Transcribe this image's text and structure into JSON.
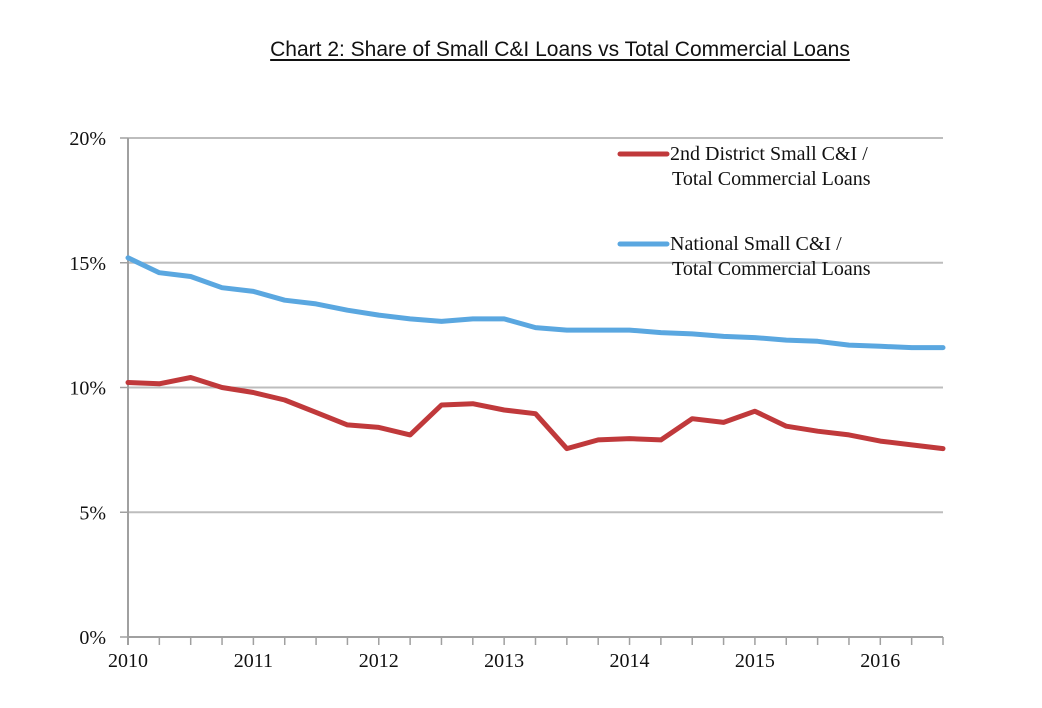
{
  "chart_data": {
    "type": "line",
    "title": "Chart 2: Share of Small C&I Loans vs Total Commercial Loans",
    "xlabel": "",
    "ylabel": "",
    "x": [
      "2010Q1",
      "2010Q2",
      "2010Q3",
      "2010Q4",
      "2011Q1",
      "2011Q2",
      "2011Q3",
      "2011Q4",
      "2012Q1",
      "2012Q2",
      "2012Q3",
      "2012Q4",
      "2013Q1",
      "2013Q2",
      "2013Q3",
      "2013Q4",
      "2014Q1",
      "2014Q2",
      "2014Q3",
      "2014Q4",
      "2015Q1",
      "2015Q2",
      "2015Q3",
      "2015Q4",
      "2016Q1",
      "2016Q2",
      "2016Q3"
    ],
    "x_tick_labels": [
      "2010",
      "2011",
      "2012",
      "2013",
      "2014",
      "2015",
      "2016"
    ],
    "y_tick_labels": [
      "0%",
      "5%",
      "10%",
      "15%",
      "20%"
    ],
    "ylim": [
      0,
      20
    ],
    "grid": true,
    "legend_position": "top-right",
    "series": [
      {
        "name": "2nd District Small C&I / Total Commercial Loans",
        "legend_lines": [
          "2nd District Small C&I /",
          "Total Commercial Loans"
        ],
        "color": "#c0393b",
        "values": [
          10.2,
          10.15,
          10.4,
          10.0,
          9.8,
          9.5,
          9.0,
          8.5,
          8.4,
          8.1,
          9.3,
          9.35,
          9.1,
          8.95,
          7.55,
          7.9,
          7.95,
          7.9,
          8.75,
          8.6,
          9.05,
          8.45,
          8.25,
          8.1,
          7.85,
          7.7,
          7.55
        ]
      },
      {
        "name": "National Small C&I / Total Commercial Loans",
        "legend_lines": [
          "National Small C&I /",
          "Total Commercial Loans"
        ],
        "color": "#5aa7e0",
        "values": [
          15.2,
          14.6,
          14.45,
          14.0,
          13.85,
          13.5,
          13.35,
          13.1,
          12.9,
          12.75,
          12.65,
          12.75,
          12.75,
          12.4,
          12.3,
          12.3,
          12.3,
          12.2,
          12.15,
          12.05,
          12.0,
          11.9,
          11.85,
          11.7,
          11.65,
          11.6,
          11.6
        ]
      }
    ]
  }
}
